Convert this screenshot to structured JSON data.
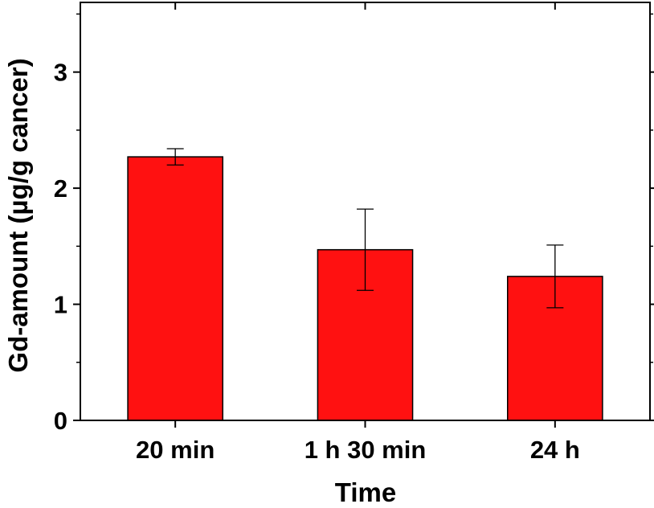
{
  "chart_data": {
    "type": "bar",
    "title": "",
    "xlabel": "Time",
    "ylabel": "Gd-amount (µg/g cancer)",
    "categories": [
      "20 min",
      "1 h 30 min",
      "24 h"
    ],
    "values": [
      2.27,
      1.47,
      1.24
    ],
    "errors": [
      0.07,
      0.35,
      0.27
    ],
    "ylim": [
      0,
      3.6
    ],
    "yticks": [
      0,
      1,
      2,
      3
    ],
    "grid": false,
    "bar_color": "#ff1111",
    "bar_edge_color": "#000000"
  }
}
